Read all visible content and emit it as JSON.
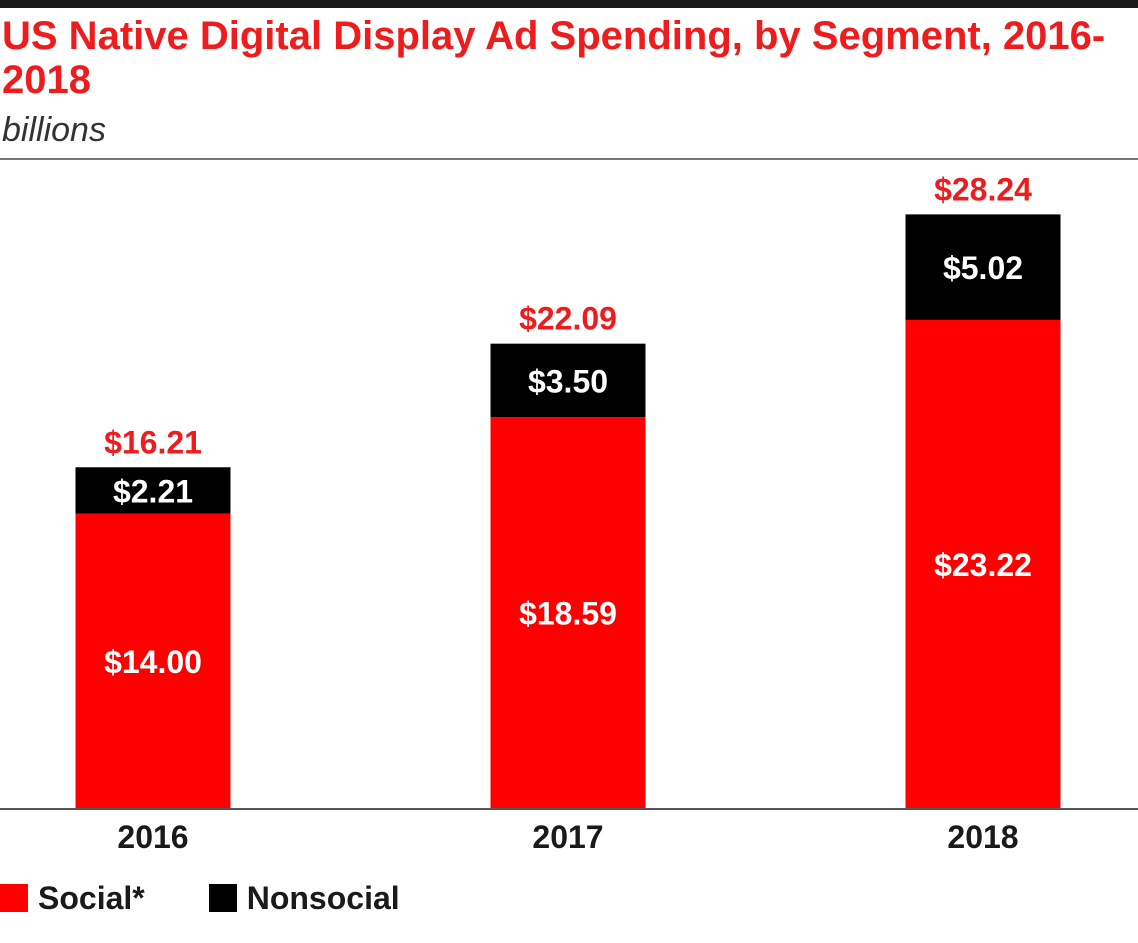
{
  "chart_data": {
    "type": "bar",
    "stacked": true,
    "title": "US Native Digital Display Ad Spending, by Segment, 2016-2018",
    "subtitle": "billions",
    "xlabel": "",
    "ylabel": "",
    "categories": [
      "2016",
      "2017",
      "2018"
    ],
    "series": [
      {
        "name": "Social*",
        "color": "#ff0000",
        "values": [
          14.0,
          18.59,
          23.22
        ],
        "labels": [
          "$14.00",
          "$18.59",
          "$23.22"
        ]
      },
      {
        "name": "Nonsocial",
        "color": "#000000",
        "values": [
          2.21,
          3.5,
          5.02
        ],
        "labels": [
          "$2.21",
          "$3.50",
          "$5.02"
        ]
      }
    ],
    "totals": [
      16.21,
      22.09,
      28.24
    ],
    "total_labels": [
      "$16.21",
      "$22.09",
      "$28.24"
    ],
    "total_label_color": "#ee1c1c",
    "segment_label_color": "#ffffff",
    "ylim": [
      0,
      30
    ],
    "grid": false,
    "legend": "bottom-left"
  }
}
